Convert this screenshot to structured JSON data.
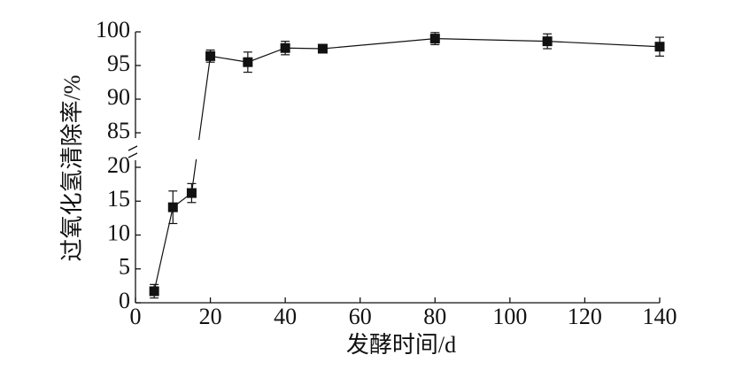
{
  "chart_data": {
    "type": "line",
    "x_label": "发酵时间/d",
    "y_label": "过氧化氢清除率/%",
    "x": [
      5,
      10,
      15,
      20,
      30,
      40,
      50,
      80,
      110,
      140
    ],
    "values": [
      1.7,
      14.1,
      16.2,
      96.4,
      95.5,
      97.6,
      97.5,
      99.0,
      98.6,
      97.8
    ],
    "errors": [
      1.0,
      2.4,
      1.4,
      0.9,
      1.5,
      1.0,
      0.3,
      0.9,
      1.1,
      1.4
    ],
    "color": "#111111",
    "xlim": [
      0,
      140
    ],
    "xticks": [
      0,
      20,
      40,
      60,
      80,
      100,
      120,
      140
    ],
    "ylim": [
      0,
      100
    ],
    "ybreak": [
      20,
      85
    ],
    "yticks": [
      0,
      5,
      10,
      15,
      20,
      85,
      90,
      95,
      100
    ]
  }
}
